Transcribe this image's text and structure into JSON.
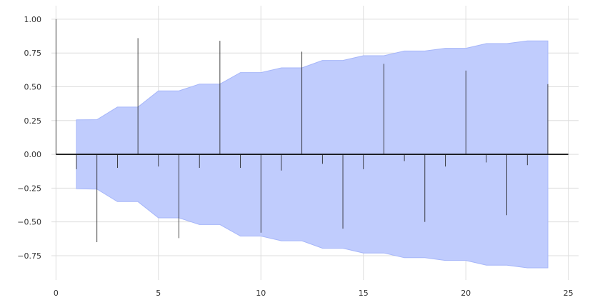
{
  "chart_data": {
    "type": "bar",
    "title": "",
    "xlabel": "",
    "ylabel": "",
    "xlim": [
      -0.5,
      25.5
    ],
    "ylim": [
      -0.93,
      1.1
    ],
    "grid": true,
    "x_ticks": [
      0,
      5,
      10,
      15,
      20,
      25
    ],
    "x_tick_labels": [
      "0",
      "5",
      "10",
      "15",
      "20",
      "25"
    ],
    "y_ticks": [
      -0.75,
      -0.5,
      -0.25,
      0.0,
      0.25,
      0.5,
      0.75,
      1.0
    ],
    "y_tick_labels": [
      "−0.75",
      "−0.50",
      "−0.25",
      "0.00",
      "0.25",
      "0.50",
      "0.75",
      "1.00"
    ],
    "lags": [
      0,
      1,
      2,
      3,
      4,
      5,
      6,
      7,
      8,
      9,
      10,
      11,
      12,
      13,
      14,
      15,
      16,
      17,
      18,
      19,
      20,
      21,
      22,
      23,
      24
    ],
    "values": [
      1.0,
      -0.11,
      -0.65,
      -0.1,
      0.86,
      -0.09,
      -0.62,
      -0.1,
      0.84,
      -0.1,
      -0.58,
      -0.12,
      0.76,
      -0.07,
      -0.55,
      -0.11,
      0.67,
      -0.05,
      -0.5,
      -0.09,
      0.62,
      -0.06,
      -0.45,
      -0.08,
      0.52
    ],
    "confidence_band": {
      "x": [
        1,
        2,
        3,
        4,
        5,
        6,
        7,
        8,
        9,
        10,
        11,
        12,
        13,
        14,
        15,
        16,
        17,
        18,
        19,
        20,
        21,
        22,
        23,
        24
      ],
      "upper": [
        0.255,
        0.257,
        0.35,
        0.35,
        0.47,
        0.47,
        0.52,
        0.52,
        0.605,
        0.605,
        0.64,
        0.64,
        0.695,
        0.695,
        0.73,
        0.73,
        0.765,
        0.765,
        0.785,
        0.785,
        0.82,
        0.82,
        0.84,
        0.84
      ]
    },
    "colors": {
      "band_fill": "#c0ccfd",
      "band_edge": "#a6b6f9",
      "stem": "#1a1a1a",
      "zero_line": "#000000",
      "grid": "#dddddd"
    }
  }
}
